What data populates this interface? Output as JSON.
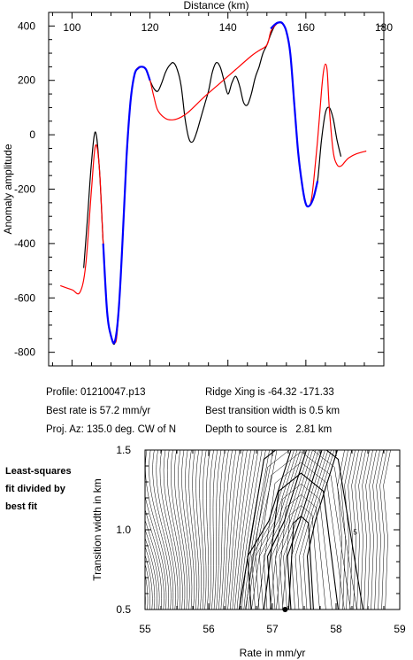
{
  "info": {
    "profile": "Profile: 01210047.p13",
    "best_rate": "Best rate is 57.2 mm/yr",
    "proj_az": "Proj. Az: 135.0 deg. CW of N",
    "ridge_xing": "Ridge Xing is -64.32 -171.33",
    "best_width": "Best transition width is 0.5 km",
    "depth": "Depth to source is   2.81 km"
  },
  "side_note": [
    "Least-squares",
    "fit divided by",
    "best fit"
  ],
  "chart_data": [
    {
      "type": "line",
      "xlabel": "Distance (km)",
      "ylabel": "Anomaly amplitude",
      "xlim": [
        94,
        180
      ],
      "ylim": [
        -850,
        450
      ],
      "xticks": [
        100,
        120,
        140,
        160,
        180
      ],
      "yticks": [
        -800,
        -600,
        -400,
        -200,
        0,
        200,
        400
      ],
      "x_axis_position": "top",
      "grid": false,
      "legend": "none",
      "series": [
        {
          "color": "#ff0000",
          "x": [
            97,
            100,
            102,
            103.5,
            105,
            106,
            107,
            108,
            109,
            110,
            111,
            111.5,
            112,
            113,
            114,
            115,
            116,
            117,
            118,
            119,
            120,
            121,
            122,
            124,
            126,
            128,
            130,
            134,
            138,
            142,
            146,
            148,
            150,
            151,
            152,
            153,
            154,
            155,
            156,
            157,
            158,
            159,
            160,
            161,
            161.5,
            162,
            163,
            164,
            164.5,
            165,
            165.5,
            166,
            167,
            168,
            169,
            170,
            171,
            173,
            175.5
          ],
          "y": [
            -555,
            -570,
            -580,
            -480,
            -200,
            -40,
            -120,
            -400,
            -650,
            -740,
            -765,
            -740,
            -640,
            -380,
            -80,
            120,
            220,
            248,
            250,
            240,
            200,
            140,
            90,
            60,
            55,
            65,
            85,
            140,
            190,
            240,
            290,
            310,
            330,
            380,
            400,
            412,
            408,
            380,
            300,
            120,
            -60,
            -180,
            -255,
            -260,
            -230,
            -170,
            -20,
            160,
            230,
            260,
            230,
            100,
            -60,
            -110,
            -115,
            -100,
            -85,
            -70,
            -60
          ]
        },
        {
          "color": "#000000",
          "x": [
            103,
            104,
            105,
            106,
            107,
            108,
            109,
            110,
            111,
            112,
            113,
            114,
            115,
            116,
            117,
            118,
            119,
            120,
            121,
            122,
            123,
            124,
            125,
            126,
            127,
            128,
            129,
            130,
            131,
            132,
            133,
            134,
            135,
            136,
            137,
            138,
            139,
            140,
            141,
            142,
            143,
            144,
            145,
            146,
            147,
            148,
            149,
            150,
            151,
            152,
            153,
            154,
            155,
            156,
            157,
            158,
            159,
            160,
            161,
            162,
            163,
            164,
            165,
            166,
            167,
            168,
            169
          ],
          "y": [
            -490,
            -300,
            -100,
            10,
            -120,
            -400,
            -650,
            -740,
            -765,
            -640,
            -380,
            -80,
            120,
            220,
            245,
            250,
            240,
            200,
            170,
            160,
            190,
            230,
            255,
            265,
            240,
            180,
            60,
            -15,
            -25,
            10,
            60,
            110,
            160,
            230,
            265,
            250,
            200,
            150,
            190,
            215,
            180,
            120,
            110,
            150,
            210,
            250,
            300,
            330,
            370,
            400,
            412,
            408,
            380,
            300,
            120,
            -60,
            -180,
            -255,
            -260,
            -230,
            -170,
            -20,
            80,
            100,
            60,
            -20,
            -80
          ]
        },
        {
          "color": "#0000ff",
          "x": [
            108,
            109,
            110,
            111,
            112,
            113,
            114,
            115,
            116,
            117,
            118,
            119,
            120
          ],
          "y": [
            -400,
            -650,
            -740,
            -760,
            -640,
            -380,
            -80,
            120,
            220,
            245,
            250,
            240,
            200
          ]
        },
        {
          "color": "#0000ff",
          "x": [
            151,
            152,
            153,
            154,
            155,
            156,
            157,
            158,
            159,
            160,
            161,
            162,
            163
          ],
          "y": [
            390,
            405,
            413,
            410,
            380,
            300,
            120,
            -60,
            -180,
            -255,
            -260,
            -230,
            -170
          ]
        }
      ]
    },
    {
      "type": "contour",
      "xlabel": "Rate in mm/yr",
      "ylabel": "Transition width in km",
      "xlim": [
        55,
        59
      ],
      "ylim": [
        0.5,
        1.5
      ],
      "xticks": [
        55,
        56,
        57,
        58,
        59
      ],
      "yticks": [
        0.5,
        1.0,
        1.5
      ],
      "best_fit_point": {
        "rate": 57.2,
        "width": 0.5
      },
      "contour_label": "5"
    }
  ]
}
